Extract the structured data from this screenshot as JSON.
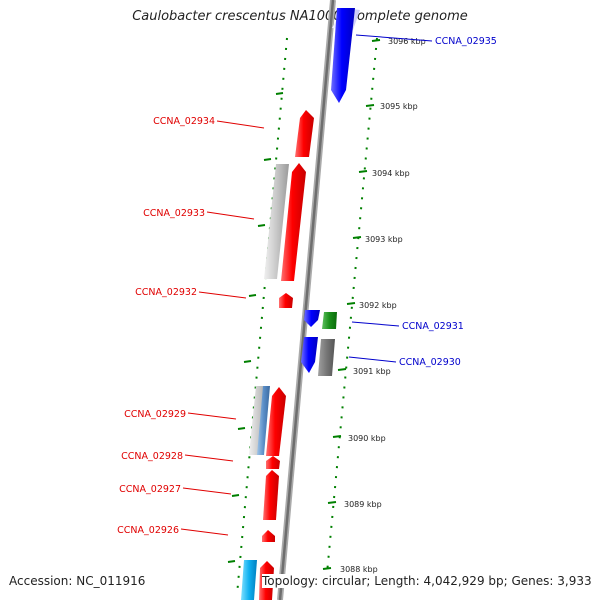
{
  "title": "Caulobacter crescentus NA1000, complete genome",
  "footer": {
    "accession": "Accession: NC_011916",
    "topology": "Topology: circular; Length: 4,042,929 bp; Genes: 3,933"
  },
  "colors": {
    "forward_gene": "#ff0000",
    "reverse_gene": "#0000ff",
    "other_feature": "#008000",
    "backbone": "#808080",
    "tick": "#008000",
    "forward_label": "#e00000",
    "reverse_label": "#0000cc"
  },
  "tick_labels": [
    "3096 kbp",
    "3095 kbp",
    "3094 kbp",
    "3093 kbp",
    "3092 kbp",
    "3091 kbp",
    "3090 kbp",
    "3089 kbp",
    "3088 kbp"
  ],
  "genes": [
    {
      "id": "CCNA_02935",
      "strand": "reverse"
    },
    {
      "id": "CCNA_02934",
      "strand": "forward"
    },
    {
      "id": "CCNA_02933",
      "strand": "forward"
    },
    {
      "id": "CCNA_02932",
      "strand": "forward"
    },
    {
      "id": "CCNA_02931",
      "strand": "reverse"
    },
    {
      "id": "CCNA_02930",
      "strand": "reverse"
    },
    {
      "id": "CCNA_02929",
      "strand": "forward"
    },
    {
      "id": "CCNA_02928",
      "strand": "forward"
    },
    {
      "id": "CCNA_02927",
      "strand": "forward"
    },
    {
      "id": "CCNA_02926",
      "strand": "forward"
    }
  ]
}
